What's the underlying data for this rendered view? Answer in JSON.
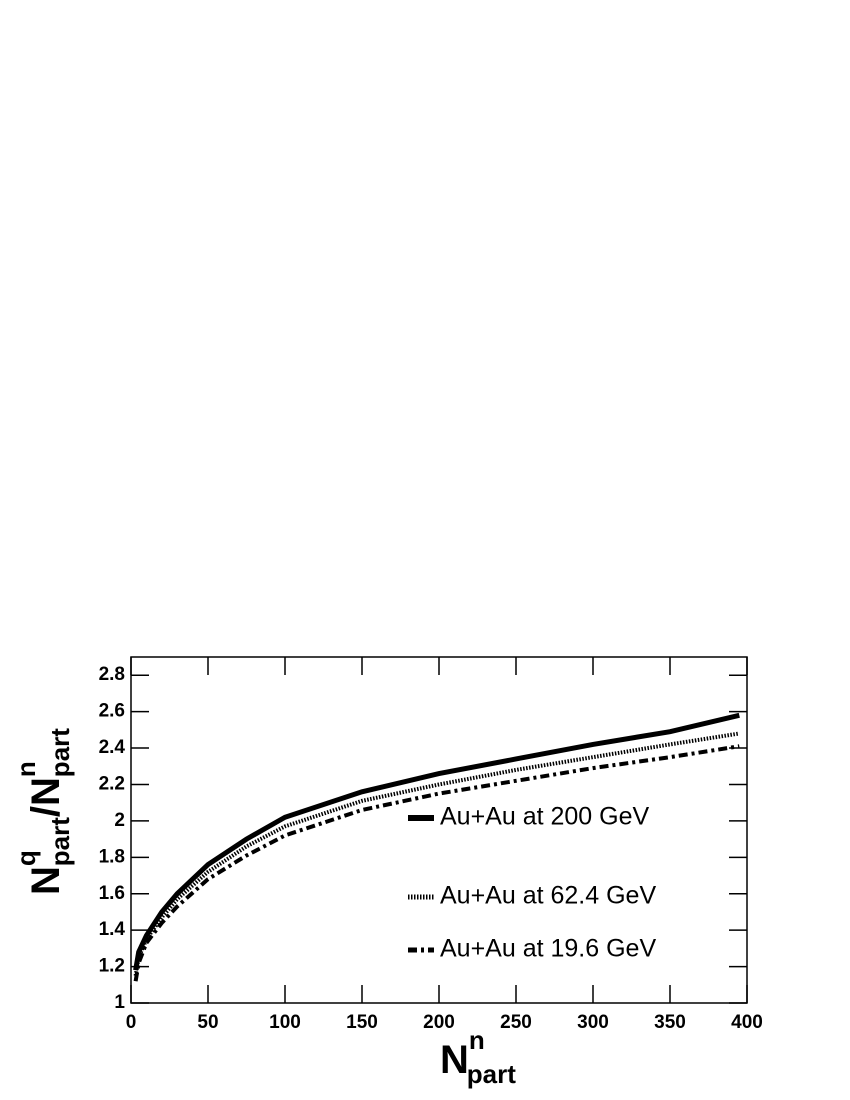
{
  "chart_data": {
    "type": "line",
    "x_label": {
      "main": "N",
      "sup": "n",
      "sub": "part"
    },
    "y_label": {
      "num_main": "N",
      "num_sup": "q",
      "num_sub": "part",
      "slash": "/",
      "den_main": "N",
      "den_sup": "n",
      "den_sub": "part"
    },
    "x": [
      3,
      5,
      10,
      20,
      30,
      50,
      75,
      100,
      150,
      200,
      250,
      300,
      350,
      395
    ],
    "series": [
      {
        "name": "Au+Au at 200 GeV",
        "color": "#000000",
        "style": "solid",
        "values": [
          1.18,
          1.28,
          1.37,
          1.5,
          1.6,
          1.76,
          1.9,
          2.02,
          2.16,
          2.26,
          2.34,
          2.42,
          2.49,
          2.58
        ]
      },
      {
        "name": "Au+Au at 62.4 GeV",
        "color": "#000000",
        "style": "dotted",
        "values": [
          1.15,
          1.25,
          1.35,
          1.47,
          1.57,
          1.72,
          1.86,
          1.97,
          2.11,
          2.2,
          2.28,
          2.35,
          2.42,
          2.48
        ]
      },
      {
        "name": "Au+Au at 19.6 GeV",
        "color": "#000000",
        "style": "dashdot",
        "values": [
          1.12,
          1.22,
          1.33,
          1.44,
          1.53,
          1.68,
          1.81,
          1.92,
          2.06,
          2.15,
          2.22,
          2.29,
          2.35,
          2.41
        ]
      }
    ],
    "xlim": [
      0,
      400
    ],
    "xticks": [
      0,
      50,
      100,
      150,
      200,
      250,
      300,
      350,
      400
    ],
    "ylim": [
      1,
      2.9
    ],
    "yticks": [
      1,
      1.2,
      1.4,
      1.6,
      1.8,
      2,
      2.2,
      2.4,
      2.6,
      2.8
    ],
    "grid": false
  }
}
